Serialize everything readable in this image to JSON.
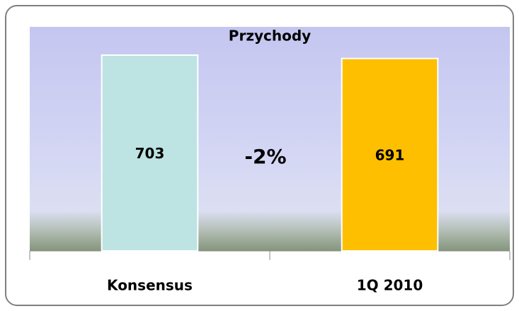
{
  "chart_data": {
    "type": "bar",
    "title": "Przychody",
    "categories": [
      "Konsensus",
      "1Q 2010"
    ],
    "values": [
      703,
      691
    ],
    "colors": [
      "#bde3e3",
      "#fdbf00"
    ],
    "annotation": "-2%"
  }
}
